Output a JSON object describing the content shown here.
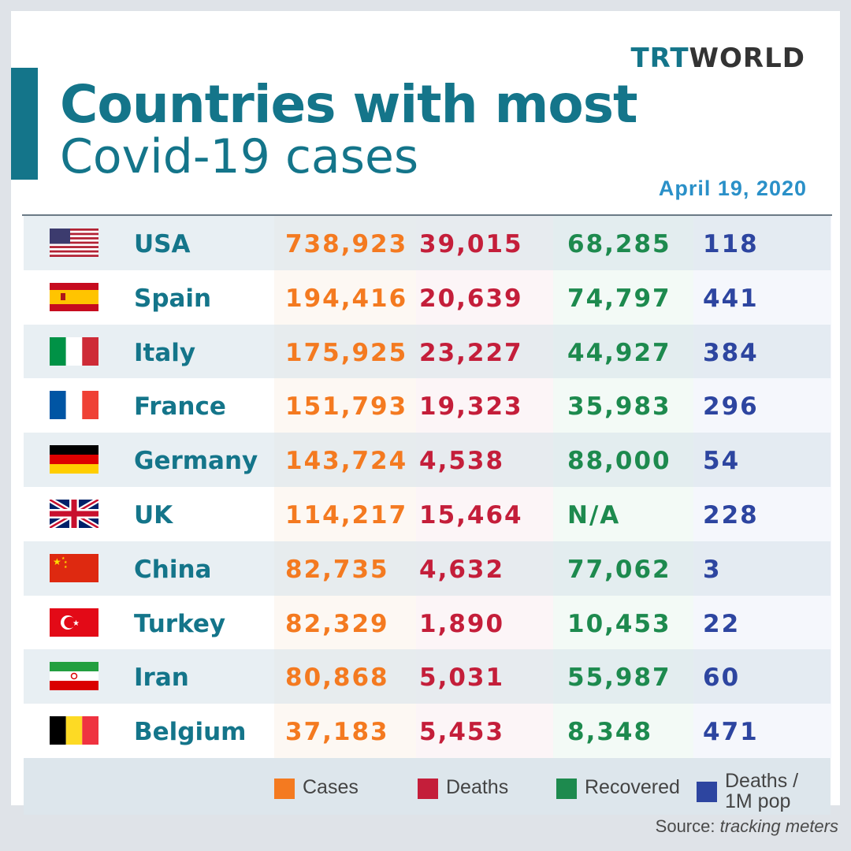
{
  "brand": {
    "logo_trt": "TRT",
    "logo_world": "WORLD"
  },
  "title_line1": "Countries with most",
  "title_line2": "Covid-19 cases",
  "date": "April 19, 2020",
  "colors": {
    "teal": "#14758a",
    "cases": "#f47a20",
    "deaths": "#c41e3a",
    "recovered": "#1d8a4e",
    "deaths_per_1m": "#2d45a0"
  },
  "legend": {
    "cases": "Cases",
    "deaths": "Deaths",
    "recovered": "Recovered",
    "deaths_per_1m_line1": "Deaths /",
    "deaths_per_1m_line2": "1M pop"
  },
  "source": {
    "label": "Source:",
    "value": "tracking meters"
  },
  "rows": [
    {
      "flag": "usa-flag-icon",
      "country": "USA",
      "cases": "738,923",
      "deaths": "39,015",
      "recovered": "68,285",
      "per_million": "118"
    },
    {
      "flag": "spain-flag-icon",
      "country": "Spain",
      "cases": "194,416",
      "deaths": "20,639",
      "recovered": "74,797",
      "per_million": "441"
    },
    {
      "flag": "italy-flag-icon",
      "country": "Italy",
      "cases": "175,925",
      "deaths": "23,227",
      "recovered": "44,927",
      "per_million": "384"
    },
    {
      "flag": "france-flag-icon",
      "country": "France",
      "cases": "151,793",
      "deaths": "19,323",
      "recovered": "35,983",
      "per_million": "296"
    },
    {
      "flag": "germany-flag-icon",
      "country": "Germany",
      "cases": "143,724",
      "deaths": "4,538",
      "recovered": "88,000",
      "per_million": "54"
    },
    {
      "flag": "uk-flag-icon",
      "country": "UK",
      "cases": "114,217",
      "deaths": "15,464",
      "recovered": "N/A",
      "per_million": "228"
    },
    {
      "flag": "china-flag-icon",
      "country": "China",
      "cases": "82,735",
      "deaths": "4,632",
      "recovered": "77,062",
      "per_million": "3"
    },
    {
      "flag": "turkey-flag-icon",
      "country": "Turkey",
      "cases": "82,329",
      "deaths": "1,890",
      "recovered": "10,453",
      "per_million": "22"
    },
    {
      "flag": "iran-flag-icon",
      "country": "Iran",
      "cases": "80,868",
      "deaths": "5,031",
      "recovered": "55,987",
      "per_million": "60"
    },
    {
      "flag": "belgium-flag-icon",
      "country": "Belgium",
      "cases": "37,183",
      "deaths": "5,453",
      "recovered": "8,348",
      "per_million": "471"
    }
  ],
  "chart_data": {
    "type": "table",
    "title": "Countries with most Covid-19 cases",
    "subtitle": "April 19, 2020",
    "columns": [
      "Cases",
      "Deaths",
      "Recovered",
      "Deaths / 1M pop"
    ],
    "rows": [
      {
        "country": "USA",
        "values": [
          738923,
          39015,
          68285,
          118
        ]
      },
      {
        "country": "Spain",
        "values": [
          194416,
          20639,
          74797,
          441
        ]
      },
      {
        "country": "Italy",
        "values": [
          175925,
          23227,
          44927,
          384
        ]
      },
      {
        "country": "France",
        "values": [
          151793,
          19323,
          35983,
          296
        ]
      },
      {
        "country": "Germany",
        "values": [
          143724,
          4538,
          88000,
          54
        ]
      },
      {
        "country": "UK",
        "values": [
          114217,
          15464,
          null,
          228
        ]
      },
      {
        "country": "China",
        "values": [
          82735,
          4632,
          77062,
          3
        ]
      },
      {
        "country": "Turkey",
        "values": [
          82329,
          1890,
          10453,
          22
        ]
      },
      {
        "country": "Iran",
        "values": [
          80868,
          5031,
          55987,
          60
        ]
      },
      {
        "country": "Belgium",
        "values": [
          37183,
          5453,
          8348,
          471
        ]
      }
    ]
  }
}
